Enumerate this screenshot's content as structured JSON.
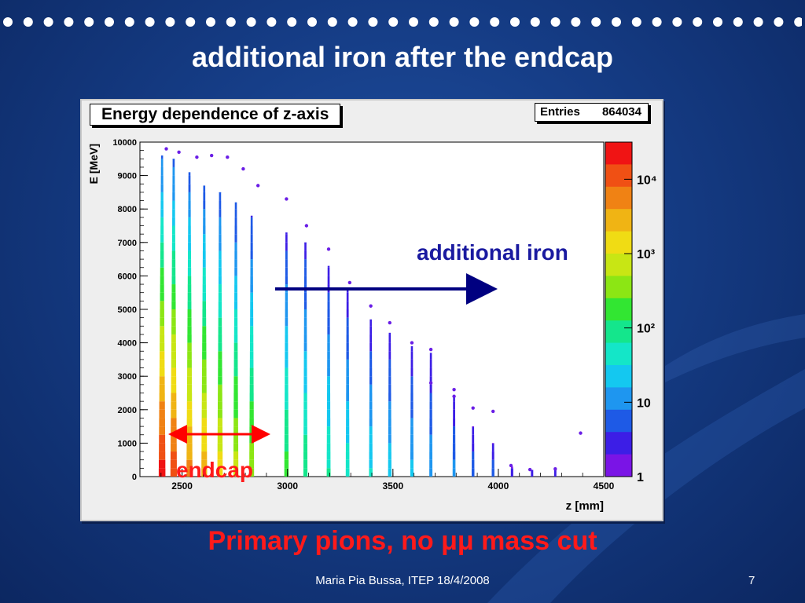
{
  "slide": {
    "title": "additional iron after the endcap",
    "subtitle": "Primary pions, no μμ mass cut",
    "author": "Maria Pia Bussa,  ITEP 18/4/2008",
    "page_number": "7"
  },
  "annotations": {
    "additional_iron": "additional iron",
    "endcap": "endcap"
  },
  "colors": {
    "background": "#153c85",
    "arrow_iron": "#000080",
    "arrow_endcap": "#ff0000",
    "subtitle": "#ff1a1a"
  },
  "chart_data": {
    "type": "heatmap",
    "title": "Energy dependence of z-axis",
    "entries_label": "Entries",
    "entries_value": "864034",
    "xlabel": "z [mm]",
    "ylabel": "E [MeV]",
    "xlim": [
      2300,
      4500
    ],
    "ylim": [
      0,
      10000
    ],
    "x_ticks": [
      2500,
      3000,
      3500,
      4000,
      4500
    ],
    "y_ticks": [
      0,
      1000,
      2000,
      3000,
      4000,
      5000,
      6000,
      7000,
      8000,
      9000,
      10000
    ],
    "z_scale": "log",
    "z_ticks": [
      "1",
      "10",
      "10²",
      "10³",
      "10⁴"
    ],
    "columns": [
      {
        "z": 2405,
        "max_e": 9600,
        "intensity": 1.0
      },
      {
        "z": 2460,
        "max_e": 9500,
        "intensity": 0.95
      },
      {
        "z": 2535,
        "max_e": 9100,
        "intensity": 0.85
      },
      {
        "z": 2605,
        "max_e": 8700,
        "intensity": 0.8
      },
      {
        "z": 2680,
        "max_e": 8500,
        "intensity": 0.72
      },
      {
        "z": 2755,
        "max_e": 8200,
        "intensity": 0.65
      },
      {
        "z": 2830,
        "max_e": 7800,
        "intensity": 0.6
      },
      {
        "z": 2995,
        "max_e": 7300,
        "intensity": 0.5
      },
      {
        "z": 3085,
        "max_e": 7000,
        "intensity": 0.45
      },
      {
        "z": 3195,
        "max_e": 6300,
        "intensity": 0.4
      },
      {
        "z": 3285,
        "max_e": 5600,
        "intensity": 0.37
      },
      {
        "z": 3395,
        "max_e": 4700,
        "intensity": 0.33
      },
      {
        "z": 3485,
        "max_e": 4300,
        "intensity": 0.3
      },
      {
        "z": 3590,
        "max_e": 3900,
        "intensity": 0.27
      },
      {
        "z": 3680,
        "max_e": 3700,
        "intensity": 0.24
      },
      {
        "z": 3790,
        "max_e": 2400,
        "intensity": 0.2
      },
      {
        "z": 3880,
        "max_e": 1500,
        "intensity": 0.17
      },
      {
        "z": 3975,
        "max_e": 1000,
        "intensity": 0.15
      },
      {
        "z": 4065,
        "max_e": 300,
        "intensity": 0.1
      },
      {
        "z": 4160,
        "max_e": 200,
        "intensity": 0.08
      },
      {
        "z": 4270,
        "max_e": 200,
        "intensity": 0.06
      }
    ],
    "outliers": [
      [
        2425,
        9800
      ],
      [
        2485,
        9700
      ],
      [
        2570,
        9550
      ],
      [
        2640,
        9600
      ],
      [
        2715,
        9550
      ],
      [
        2790,
        9200
      ],
      [
        2860,
        8700
      ],
      [
        2995,
        8300
      ],
      [
        3090,
        7500
      ],
      [
        3195,
        6800
      ],
      [
        3295,
        5800
      ],
      [
        3395,
        5100
      ],
      [
        3485,
        4600
      ],
      [
        3590,
        4000
      ],
      [
        3680,
        3800
      ],
      [
        3790,
        2600
      ],
      [
        3880,
        2050
      ],
      [
        3975,
        1950
      ],
      [
        4060,
        330
      ],
      [
        4150,
        210
      ],
      [
        4270,
        230
      ],
      [
        4390,
        1300
      ],
      [
        3790,
        2400
      ],
      [
        3680,
        2800
      ]
    ]
  }
}
